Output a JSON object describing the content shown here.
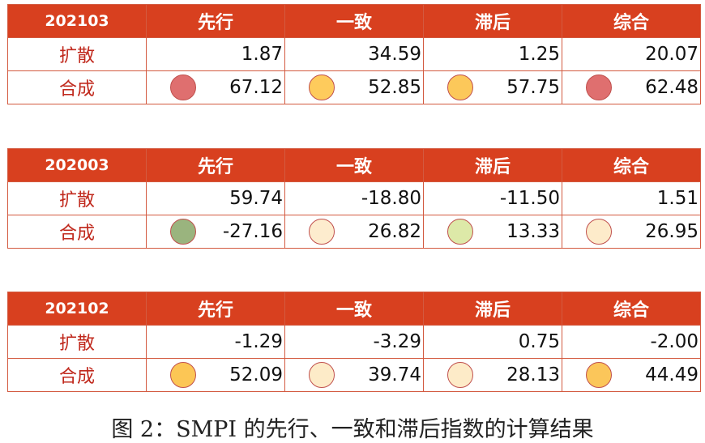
{
  "tables": [
    {
      "header": [
        "202103",
        "先行",
        "一致",
        "滞后",
        "综合"
      ],
      "rows": [
        {
          "label": "扩散",
          "cells": [
            "1.87",
            "34.59",
            "1.25",
            "20.07"
          ]
        },
        {
          "label": "合成",
          "cells": [
            "67.12",
            "52.85",
            "57.75",
            "62.48"
          ],
          "dot_colors": [
            "#df6f6f",
            "#fecb5c",
            "#fcc85a",
            "#df6f6f"
          ]
        }
      ]
    },
    {
      "header": [
        "202003",
        "先行",
        "一致",
        "滞后",
        "综合"
      ],
      "rows": [
        {
          "label": "扩散",
          "cells": [
            "59.74",
            "-18.80",
            "-11.50",
            "1.51"
          ]
        },
        {
          "label": "合成",
          "cells": [
            "-27.16",
            "26.82",
            "13.33",
            "26.95"
          ],
          "dot_colors": [
            "#9ab47e",
            "#fdecce",
            "#dde9a8",
            "#fdebca"
          ]
        }
      ]
    },
    {
      "header": [
        "202102",
        "先行",
        "一致",
        "滞后",
        "综合"
      ],
      "rows": [
        {
          "label": "扩散",
          "cells": [
            "-1.29",
            "-3.29",
            "0.75",
            "-2.00"
          ]
        },
        {
          "label": "合成",
          "cells": [
            "52.09",
            "39.74",
            "28.13",
            "44.49"
          ],
          "dot_colors": [
            "#fcc655",
            "#fdebc8",
            "#fdebc8",
            "#fbc65a"
          ]
        }
      ]
    }
  ],
  "caption": "图 2：SMPI 的先行、一致和滞后指数的计算结果"
}
